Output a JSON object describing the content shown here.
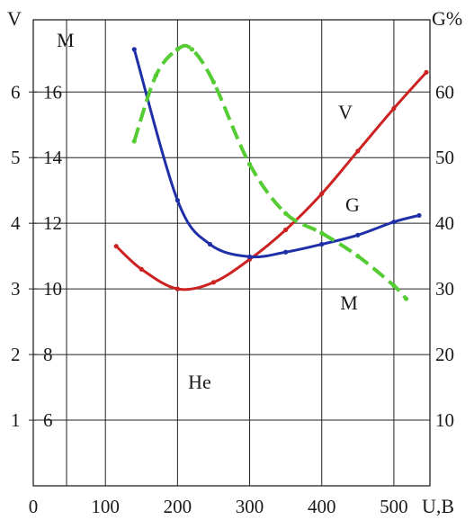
{
  "chart_data": {
    "type": "line",
    "x": {
      "label": "U,B",
      "range": [
        0,
        550
      ],
      "ticks": [
        0,
        100,
        200,
        300,
        400,
        500
      ],
      "tick_labels": [
        "0",
        "100",
        "200",
        "300",
        "400",
        "500"
      ]
    },
    "y_left_outer": {
      "label": "V",
      "range": [
        0,
        7.1
      ],
      "ticks": [
        1,
        2,
        3,
        4,
        5,
        6
      ],
      "tick_labels": [
        "1",
        "2",
        "3",
        "4",
        "5",
        "6"
      ]
    },
    "y_left_inner": {
      "label": "M",
      "range": [
        4,
        18.2
      ],
      "ticks": [
        6,
        8,
        10,
        12,
        14,
        16
      ],
      "tick_labels": [
        "6",
        "8",
        "10",
        "12",
        "14",
        "16"
      ]
    },
    "y_right": {
      "label": "G%",
      "range": [
        0,
        71
      ],
      "ticks": [
        10,
        20,
        30,
        40,
        50,
        60
      ],
      "tick_labels": [
        "10",
        "20",
        "30",
        "40",
        "50",
        "60"
      ]
    },
    "grid": true,
    "annotation": "He",
    "series": [
      {
        "name": "V",
        "axis": "y_left_outer",
        "color": "#cc2222",
        "style": "solid",
        "x": [
          115,
          150,
          200,
          250,
          300,
          350,
          400,
          450,
          500,
          545
        ],
        "y": [
          3.65,
          3.3,
          3.0,
          3.1,
          3.45,
          3.9,
          4.45,
          5.1,
          5.75,
          6.3
        ]
      },
      {
        "name": "G",
        "axis": "y_right",
        "color": "#1f2fa8",
        "style": "solid",
        "x": [
          140,
          200,
          245,
          300,
          350,
          400,
          450,
          500,
          535
        ],
        "y": [
          66.5,
          43.5,
          36.8,
          34.9,
          35.6,
          36.8,
          38.2,
          40.2,
          41.2
        ]
      },
      {
        "name": "M",
        "axis": "y_left_inner",
        "color": "#55cc33",
        "style": "dashed",
        "x": [
          140,
          170,
          200,
          220,
          250,
          300,
          350,
          400,
          450,
          500,
          517
        ],
        "y": [
          14.5,
          16.5,
          17.3,
          17.3,
          16.3,
          13.8,
          12.3,
          11.7,
          11.0,
          10.1,
          9.7
        ]
      }
    ]
  }
}
